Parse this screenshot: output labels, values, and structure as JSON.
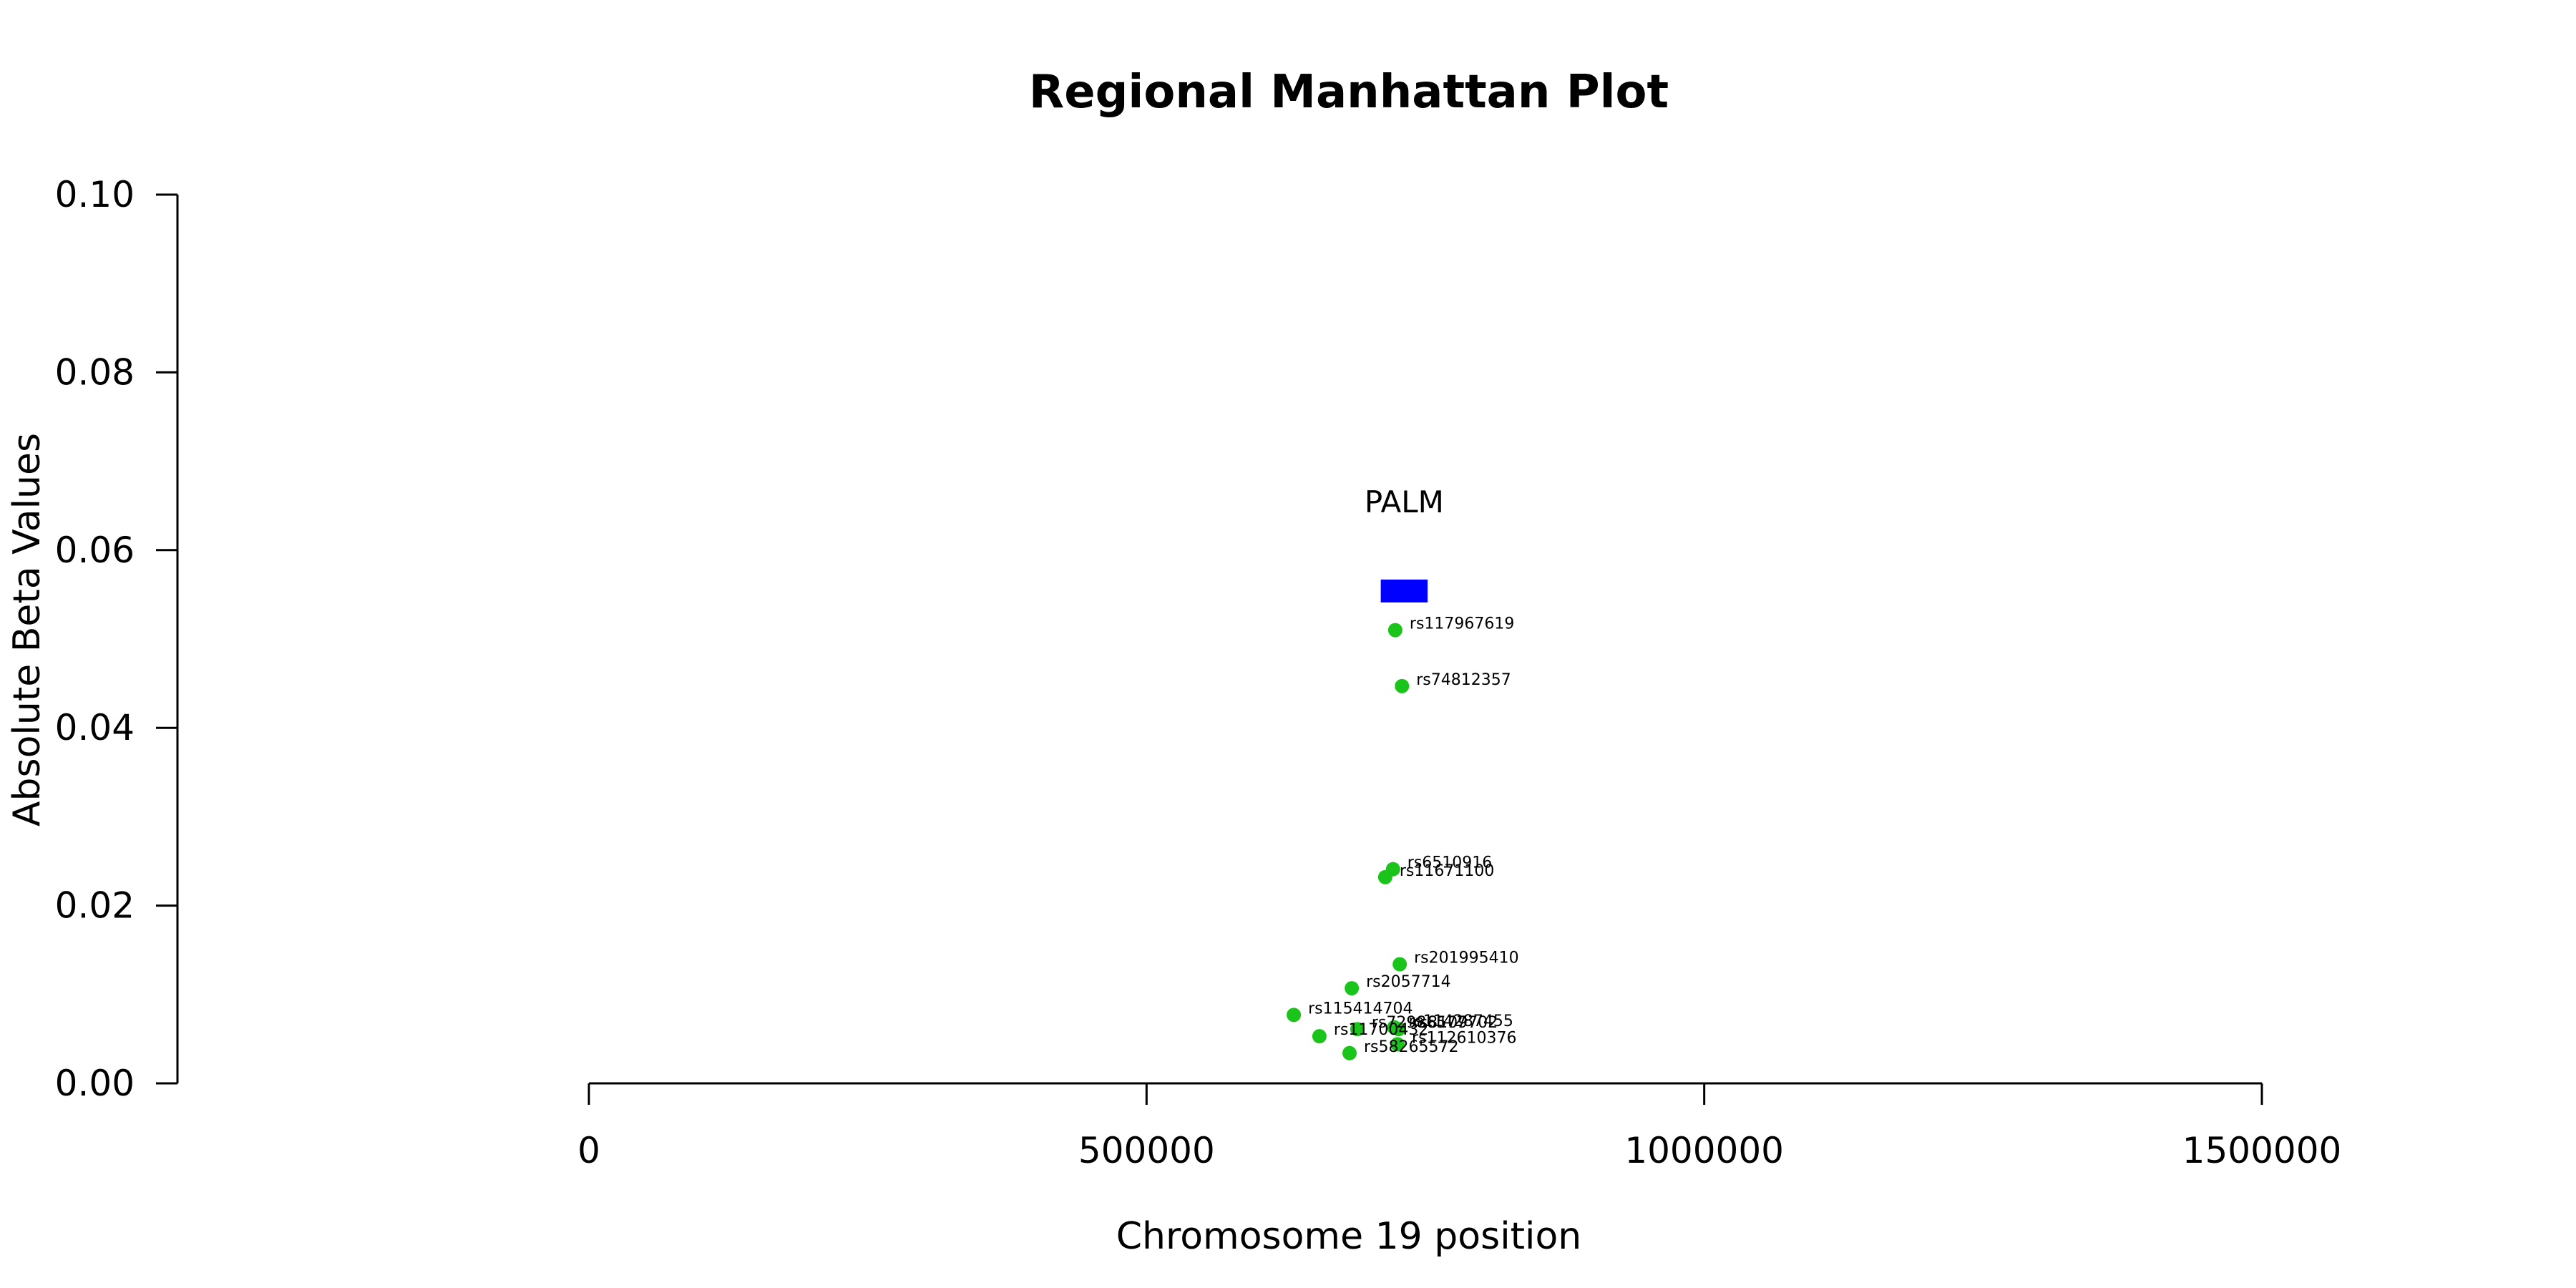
{
  "chart_data": {
    "type": "scatter",
    "title": "Regional Manhattan Plot",
    "xlabel": "Chromosome 19 position",
    "ylabel": "Absolute Beta Values",
    "xlim": [
      0,
      1500000
    ],
    "ylim": [
      0,
      0.1
    ],
    "x_ticks": [
      0,
      500000,
      1000000,
      1500000
    ],
    "x_tick_labels": [
      "0",
      "500000",
      "1000000",
      "1500000"
    ],
    "y_ticks": [
      0,
      0.02,
      0.04,
      0.06,
      0.08,
      0.1
    ],
    "y_tick_labels": [
      "0.00",
      "0.02",
      "0.04",
      "0.06",
      "0.08",
      "0.10"
    ],
    "grid": false,
    "gene": {
      "name": "PALM",
      "start": 710000,
      "end": 752000,
      "y": 0.0554,
      "color": "#0000ff"
    },
    "point_color": "#1ac41a",
    "series": [
      {
        "points": [
          {
            "label": "rs117967619",
            "x": 723000,
            "y": 0.051
          },
          {
            "label": "rs74812357",
            "x": 729000,
            "y": 0.0447
          },
          {
            "label": "rs6510916",
            "x": 721000,
            "y": 0.0241
          },
          {
            "label": "rs11671100",
            "x": 714000,
            "y": 0.0232
          },
          {
            "label": "rs201995410",
            "x": 727000,
            "y": 0.0134
          },
          {
            "label": "rs2057714",
            "x": 684000,
            "y": 0.0107
          },
          {
            "label": "rs115414704",
            "x": 632000,
            "y": 0.0077
          },
          {
            "label": "rs72986577",
            "x": 689000,
            "y": 0.0061
          },
          {
            "label": "rs114287455",
            "x": 722000,
            "y": 0.0063
          },
          {
            "label": "rs8109702",
            "x": 726000,
            "y": 0.0061
          },
          {
            "label": "rs11700432",
            "x": 655000,
            "y": 0.0053
          },
          {
            "label": "rs112610376",
            "x": 725000,
            "y": 0.0044
          },
          {
            "label": "rs58265572",
            "x": 682000,
            "y": 0.0034
          }
        ]
      }
    ]
  }
}
